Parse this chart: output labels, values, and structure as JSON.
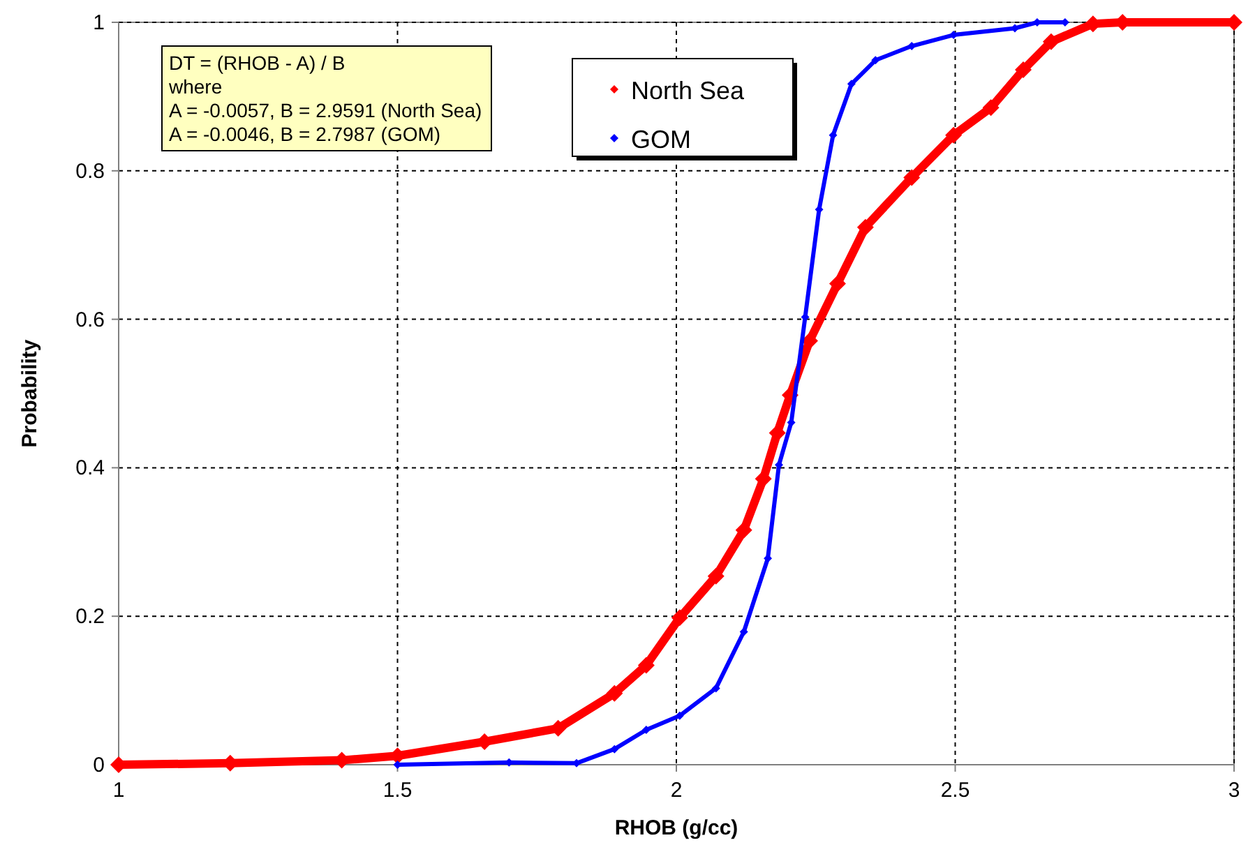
{
  "chart_data": {
    "type": "line",
    "xlabel": "RHOB (g/cc)",
    "ylabel": "Probability",
    "xlim": [
      1,
      3
    ],
    "xticks": [
      1,
      1.5,
      2,
      2.5,
      3
    ],
    "ylim": [
      0,
      1
    ],
    "yticks": [
      0,
      0.2,
      0.4,
      0.6,
      0.8,
      1
    ],
    "grid": true,
    "legend": "top",
    "marker": "diamond",
    "annotations": [
      "DT = (RHOB -  A) / B",
      "where",
      "A = -0.0057, B = 2.9591 (North Sea)",
      "A = -0.0046, B = 2.7987 (GOM)"
    ],
    "series": [
      {
        "name": "North Sea",
        "color": "#ff0000",
        "x": [
          1,
          1.2,
          1.4,
          1.5,
          1.656,
          1.788,
          1.889,
          1.946,
          2.006,
          2.071,
          2.121,
          2.156,
          2.181,
          2.204,
          2.239,
          2.289,
          2.339,
          2.422,
          2.497,
          2.564,
          2.622,
          2.672,
          2.747,
          2.8,
          3
        ],
        "values": [
          0,
          0.002,
          0.006,
          0.012,
          0.031,
          0.049,
          0.096,
          0.134,
          0.198,
          0.254,
          0.316,
          0.385,
          0.447,
          0.498,
          0.571,
          0.648,
          0.724,
          0.791,
          0.848,
          0.885,
          0.936,
          0.974,
          0.998,
          1,
          1
        ]
      },
      {
        "name": "GOM",
        "color": "#0000ff",
        "x": [
          1.5,
          1.7,
          1.821,
          1.889,
          1.946,
          2.006,
          2.071,
          2.121,
          2.164,
          2.184,
          2.206,
          2.231,
          2.256,
          2.281,
          2.314,
          2.357,
          2.422,
          2.497,
          2.607,
          2.647,
          2.697
        ],
        "values": [
          0,
          0.003,
          0.002,
          0.021,
          0.047,
          0.066,
          0.103,
          0.179,
          0.278,
          0.404,
          0.461,
          0.603,
          0.748,
          0.848,
          0.917,
          0.949,
          0.968,
          0.983,
          0.992,
          1,
          1
        ]
      }
    ]
  }
}
